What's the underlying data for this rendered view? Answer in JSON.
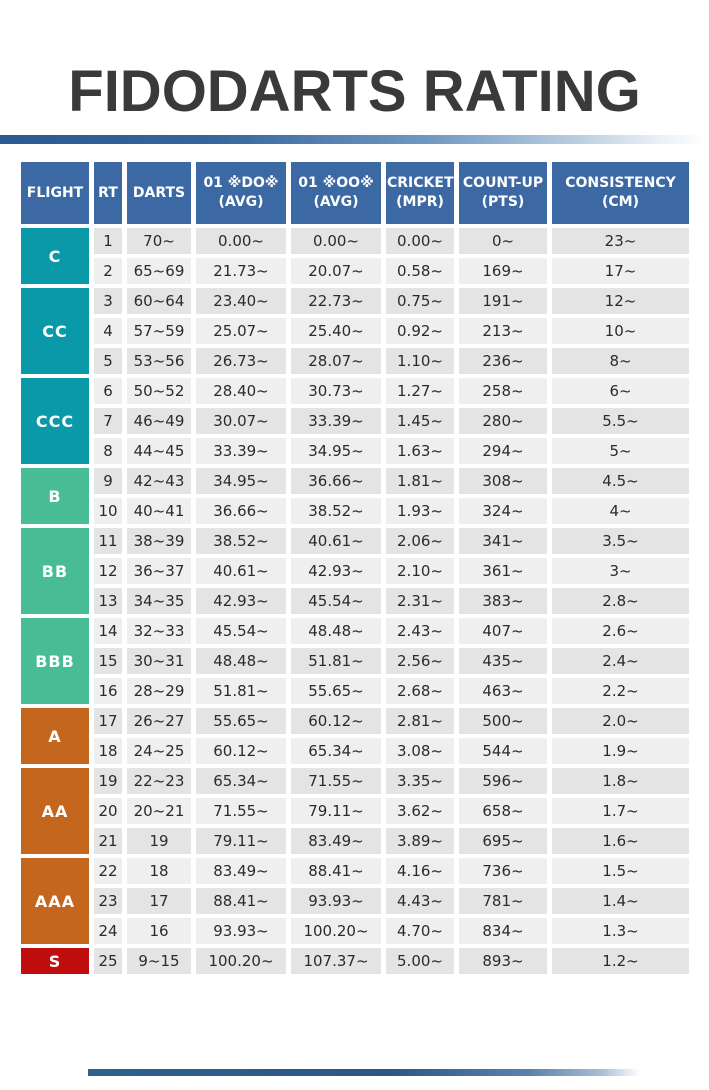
{
  "title": "FIDODARTS RATING",
  "table": {
    "columns": [
      {
        "key": "flight",
        "label": "FLIGHT",
        "sub": ""
      },
      {
        "key": "rt",
        "label": "RT",
        "sub": ""
      },
      {
        "key": "darts",
        "label": "DARTS",
        "sub": ""
      },
      {
        "key": "do01",
        "label": "01 ※DO※",
        "sub": "(AVG)"
      },
      {
        "key": "oo01",
        "label": "01 ※OO※",
        "sub": "(AVG)"
      },
      {
        "key": "cricket",
        "label": "CRICKET",
        "sub": "(MPR)"
      },
      {
        "key": "countup",
        "label": "COUNT-UP",
        "sub": "(PTS)"
      },
      {
        "key": "consistency",
        "label": "CONSISTENCY",
        "sub": "(CM)"
      }
    ],
    "groups": [
      {
        "flight": "C",
        "color_key": "teal",
        "rows": [
          {
            "rt": "1",
            "darts": "70~",
            "do01": "0.00~",
            "oo01": "0.00~",
            "cricket": "0.00~",
            "countup": "0~",
            "consistency": "23~"
          },
          {
            "rt": "2",
            "darts": "65~69",
            "do01": "21.73~",
            "oo01": "20.07~",
            "cricket": "0.58~",
            "countup": "169~",
            "consistency": "17~"
          }
        ]
      },
      {
        "flight": "CC",
        "color_key": "teal",
        "rows": [
          {
            "rt": "3",
            "darts": "60~64",
            "do01": "23.40~",
            "oo01": "22.73~",
            "cricket": "0.75~",
            "countup": "191~",
            "consistency": "12~"
          },
          {
            "rt": "4",
            "darts": "57~59",
            "do01": "25.07~",
            "oo01": "25.40~",
            "cricket": "0.92~",
            "countup": "213~",
            "consistency": "10~"
          },
          {
            "rt": "5",
            "darts": "53~56",
            "do01": "26.73~",
            "oo01": "28.07~",
            "cricket": "1.10~",
            "countup": "236~",
            "consistency": "8~"
          }
        ]
      },
      {
        "flight": "CCC",
        "color_key": "teal",
        "rows": [
          {
            "rt": "6",
            "darts": "50~52",
            "do01": "28.40~",
            "oo01": "30.73~",
            "cricket": "1.27~",
            "countup": "258~",
            "consistency": "6~"
          },
          {
            "rt": "7",
            "darts": "46~49",
            "do01": "30.07~",
            "oo01": "33.39~",
            "cricket": "1.45~",
            "countup": "280~",
            "consistency": "5.5~"
          },
          {
            "rt": "8",
            "darts": "44~45",
            "do01": "33.39~",
            "oo01": "34.95~",
            "cricket": "1.63~",
            "countup": "294~",
            "consistency": "5~"
          }
        ]
      },
      {
        "flight": "B",
        "color_key": "green",
        "rows": [
          {
            "rt": "9",
            "darts": "42~43",
            "do01": "34.95~",
            "oo01": "36.66~",
            "cricket": "1.81~",
            "countup": "308~",
            "consistency": "4.5~"
          },
          {
            "rt": "10",
            "darts": "40~41",
            "do01": "36.66~",
            "oo01": "38.52~",
            "cricket": "1.93~",
            "countup": "324~",
            "consistency": "4~"
          }
        ]
      },
      {
        "flight": "BB",
        "color_key": "green",
        "rows": [
          {
            "rt": "11",
            "darts": "38~39",
            "do01": "38.52~",
            "oo01": "40.61~",
            "cricket": "2.06~",
            "countup": "341~",
            "consistency": "3.5~"
          },
          {
            "rt": "12",
            "darts": "36~37",
            "do01": "40.61~",
            "oo01": "42.93~",
            "cricket": "2.10~",
            "countup": "361~",
            "consistency": "3~"
          },
          {
            "rt": "13",
            "darts": "34~35",
            "do01": "42.93~",
            "oo01": "45.54~",
            "cricket": "2.31~",
            "countup": "383~",
            "consistency": "2.8~"
          }
        ]
      },
      {
        "flight": "BBB",
        "color_key": "green",
        "rows": [
          {
            "rt": "14",
            "darts": "32~33",
            "do01": "45.54~",
            "oo01": "48.48~",
            "cricket": "2.43~",
            "countup": "407~",
            "consistency": "2.6~"
          },
          {
            "rt": "15",
            "darts": "30~31",
            "do01": "48.48~",
            "oo01": "51.81~",
            "cricket": "2.56~",
            "countup": "435~",
            "consistency": "2.4~"
          },
          {
            "rt": "16",
            "darts": "28~29",
            "do01": "51.81~",
            "oo01": "55.65~",
            "cricket": "2.68~",
            "countup": "463~",
            "consistency": "2.2~"
          }
        ]
      },
      {
        "flight": "A",
        "color_key": "orange",
        "rows": [
          {
            "rt": "17",
            "darts": "26~27",
            "do01": "55.65~",
            "oo01": "60.12~",
            "cricket": "2.81~",
            "countup": "500~",
            "consistency": "2.0~"
          },
          {
            "rt": "18",
            "darts": "24~25",
            "do01": "60.12~",
            "oo01": "65.34~",
            "cricket": "3.08~",
            "countup": "544~",
            "consistency": "1.9~"
          }
        ]
      },
      {
        "flight": "AA",
        "color_key": "orange",
        "rows": [
          {
            "rt": "19",
            "darts": "22~23",
            "do01": "65.34~",
            "oo01": "71.55~",
            "cricket": "3.35~",
            "countup": "596~",
            "consistency": "1.8~"
          },
          {
            "rt": "20",
            "darts": "20~21",
            "do01": "71.55~",
            "oo01": "79.11~",
            "cricket": "3.62~",
            "countup": "658~",
            "consistency": "1.7~"
          },
          {
            "rt": "21",
            "darts": "19",
            "do01": "79.11~",
            "oo01": "83.49~",
            "cricket": "3.89~",
            "countup": "695~",
            "consistency": "1.6~"
          }
        ]
      },
      {
        "flight": "AAA",
        "color_key": "orange",
        "rows": [
          {
            "rt": "22",
            "darts": "18",
            "do01": "83.49~",
            "oo01": "88.41~",
            "cricket": "4.16~",
            "countup": "736~",
            "consistency": "1.5~"
          },
          {
            "rt": "23",
            "darts": "17",
            "do01": "88.41~",
            "oo01": "93.93~",
            "cricket": "4.43~",
            "countup": "781~",
            "consistency": "1.4~"
          },
          {
            "rt": "24",
            "darts": "16",
            "do01": "93.93~",
            "oo01": "100.20~",
            "cricket": "4.70~",
            "countup": "834~",
            "consistency": "1.3~"
          }
        ]
      },
      {
        "flight": "S",
        "color_key": "red",
        "rows": [
          {
            "rt": "25",
            "darts": "9~15",
            "do01": "100.20~",
            "oo01": "107.37~",
            "cricket": "5.00~",
            "countup": "893~",
            "consistency": "1.2~"
          }
        ]
      }
    ]
  },
  "colors": {
    "header_bg": "#3c69a4",
    "header_text": "#ffffff",
    "flight_teal": "#0a99a9",
    "flight_green": "#47bc95",
    "flight_orange": "#c4661e",
    "flight_red": "#c00d0d",
    "row_dark": "#e4e4e4",
    "row_light": "#efefef",
    "title_text": "#3a3a3a",
    "divider_blue": "#2d5d93"
  }
}
